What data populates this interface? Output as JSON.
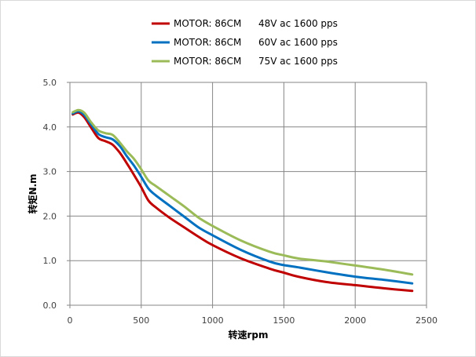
{
  "chart_data": {
    "type": "line",
    "title": "",
    "xlabel": "转速rpm",
    "ylabel": "转矩N.m",
    "xlim": [
      0,
      2500
    ],
    "ylim": [
      0,
      5
    ],
    "xticks": [
      0,
      500,
      1000,
      1500,
      2000,
      2500
    ],
    "yticks": [
      0,
      1,
      2,
      3,
      4,
      5
    ],
    "xtick_labels": [
      "0",
      "500",
      "1000",
      "1500",
      "2000",
      "2500"
    ],
    "ytick_labels": [
      "0.0",
      "1.0",
      "2.0",
      "3.0",
      "4.0",
      "5.0"
    ],
    "grid": true,
    "legend_position": "top",
    "series": [
      {
        "name": "MOTOR: 86CM",
        "condition": "48V ac 1600 pps",
        "color": "#c00000",
        "x": [
          20,
          60,
          100,
          150,
          200,
          250,
          300,
          350,
          400,
          450,
          500,
          550,
          600,
          700,
          800,
          900,
          1000,
          1200,
          1400,
          1500,
          1600,
          1800,
          2000,
          2200,
          2400
        ],
        "y": [
          4.28,
          4.32,
          4.22,
          3.98,
          3.75,
          3.68,
          3.6,
          3.42,
          3.18,
          2.92,
          2.65,
          2.35,
          2.2,
          1.96,
          1.75,
          1.54,
          1.35,
          1.05,
          0.82,
          0.73,
          0.64,
          0.52,
          0.45,
          0.38,
          0.32
        ]
      },
      {
        "name": "MOTOR: 86CM",
        "condition": "60V ac 1600 pps",
        "color": "#0070c0",
        "x": [
          20,
          60,
          100,
          150,
          200,
          250,
          300,
          350,
          400,
          450,
          500,
          550,
          600,
          700,
          800,
          900,
          1000,
          1200,
          1400,
          1500,
          1600,
          1800,
          2000,
          2200,
          2400
        ],
        "y": [
          4.3,
          4.35,
          4.27,
          4.05,
          3.84,
          3.77,
          3.72,
          3.57,
          3.34,
          3.13,
          2.88,
          2.62,
          2.47,
          2.23,
          1.99,
          1.75,
          1.57,
          1.24,
          0.98,
          0.9,
          0.85,
          0.74,
          0.64,
          0.57,
          0.49
        ]
      },
      {
        "name": "MOTOR: 86CM",
        "condition": "75V ac 1600 pps",
        "color": "#9bbb59",
        "x": [
          20,
          60,
          100,
          150,
          200,
          250,
          300,
          350,
          400,
          450,
          500,
          550,
          600,
          700,
          800,
          900,
          1000,
          1200,
          1400,
          1500,
          1600,
          1800,
          2000,
          2200,
          2400
        ],
        "y": [
          4.33,
          4.38,
          4.32,
          4.1,
          3.92,
          3.86,
          3.82,
          3.65,
          3.45,
          3.28,
          3.05,
          2.8,
          2.68,
          2.45,
          2.22,
          1.97,
          1.78,
          1.45,
          1.2,
          1.12,
          1.05,
          0.98,
          0.89,
          0.8,
          0.69
        ]
      }
    ]
  }
}
